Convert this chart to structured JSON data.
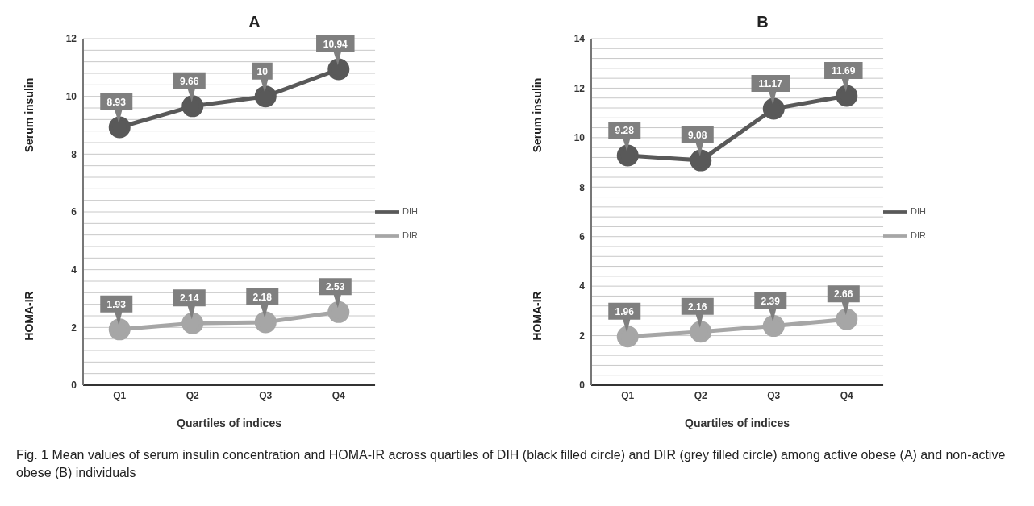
{
  "chart_data": [
    {
      "type": "line",
      "title": "A",
      "xlabel": "Quartiles of indices",
      "ylabel": "Serum insulin",
      "annotations": [
        "HOMA-IR"
      ],
      "categories": [
        "Q1",
        "Q2",
        "Q3",
        "Q4"
      ],
      "series": [
        {
          "name": "DIH",
          "color": "#595959",
          "values": [
            8.93,
            9.66,
            10,
            10.94
          ]
        },
        {
          "name": "DIR",
          "color": "#a6a6a6",
          "values": [
            1.93,
            2.14,
            2.18,
            2.53
          ]
        }
      ],
      "ylim": [
        0,
        12
      ],
      "yticks": [
        0,
        {
          "value": 0.4,
          "label": null
        },
        {
          "value": 0.8,
          "label": null
        },
        {
          "value": 1.2,
          "label": null
        },
        {
          "value": 1.6,
          "label": null
        },
        2,
        {
          "value": 2.4,
          "label": null
        },
        {
          "value": 2.8,
          "label": null
        },
        {
          "value": 3.2,
          "label": null
        },
        {
          "value": 3.6,
          "label": null
        },
        4,
        {
          "value": 4.4,
          "label": null
        },
        {
          "value": 4.8,
          "label": null
        },
        {
          "value": 5.2,
          "label": null
        },
        {
          "value": 5.6,
          "label": null
        },
        6,
        {
          "value": 6.4,
          "label": null
        },
        {
          "value": 6.8,
          "label": null
        },
        {
          "value": 7.2,
          "label": null
        },
        {
          "value": 7.6,
          "label": null
        },
        8,
        {
          "value": 8.4,
          "label": null
        },
        {
          "value": 8.8,
          "label": null
        },
        {
          "value": 9.2,
          "label": null
        },
        {
          "value": 9.6,
          "label": null
        },
        10,
        {
          "value": 10.4,
          "label": null
        },
        {
          "value": 10.8,
          "label": null
        },
        {
          "value": 11.2,
          "label": null
        },
        {
          "value": 11.6,
          "label": null
        },
        12
      ],
      "grid": "y",
      "legend": "right",
      "marker": "circle",
      "line_style": "solid",
      "data_labels": true
    },
    {
      "type": "line",
      "title": "B",
      "xlabel": "Quartiles of indices",
      "ylabel": "Serum insulin",
      "annotations": [
        "HOMA-IR",
        "Fig. 1 Mean values of serum insulin concentration and HOMA-IR across quartiles of DIH (black filled circle) and DIR (grey filled circle) among active obese (A) and non-active obese (B) individuals"
      ],
      "categories": [
        "Q1",
        "Q2",
        "Q3",
        "Q4"
      ],
      "series": [
        {
          "name": "DIH",
          "color": "#595959",
          "values": [
            9.28,
            9.08,
            11.17,
            11.69
          ]
        },
        {
          "name": "DIR",
          "color": "#a6a6a6",
          "values": [
            1.96,
            2.16,
            2.39,
            2.66
          ]
        }
      ],
      "ylim": [
        0,
        14
      ],
      "yticks": [
        0,
        {
          "value": 0.4,
          "label": null
        },
        {
          "value": 0.8,
          "label": null
        },
        {
          "value": 1.2,
          "label": null
        },
        {
          "value": 1.6,
          "label": null
        },
        2,
        {
          "value": 2.4,
          "label": null
        },
        {
          "value": 2.8,
          "label": null
        },
        {
          "value": 3.2,
          "label": null
        },
        {
          "value": 3.6,
          "label": null
        },
        4,
        {
          "value": 4.4,
          "label": null
        },
        {
          "value": 4.8,
          "label": null
        },
        {
          "value": 5.2,
          "label": null
        },
        {
          "value": 5.6,
          "label": null
        },
        6,
        {
          "value": 6.4,
          "label": null
        },
        {
          "value": 6.8,
          "label": null
        },
        {
          "value": 7.2,
          "label": null
        },
        {
          "value": 7.6,
          "label": null
        },
        8,
        {
          "value": 8.4,
          "label": null
        },
        {
          "value": 8.8,
          "label": null
        },
        {
          "value": 9.2,
          "label": null
        },
        {
          "value": 9.6,
          "label": null
        },
        10,
        {
          "value": 10.4,
          "label": null
        },
        {
          "value": 10.8,
          "label": null
        },
        {
          "value": 11.2,
          "label": null
        },
        {
          "value": 11.6,
          "label": null
        },
        12,
        {
          "value": 12.4,
          "label": null
        },
        {
          "value": 12.8,
          "label": null
        },
        {
          "value": 13.2,
          "label": null
        },
        {
          "value": 13.6,
          "label": null
        },
        14
      ],
      "grid": "y",
      "legend": "right",
      "marker": "circle",
      "line_style": "solid",
      "data_labels": true
    }
  ]
}
